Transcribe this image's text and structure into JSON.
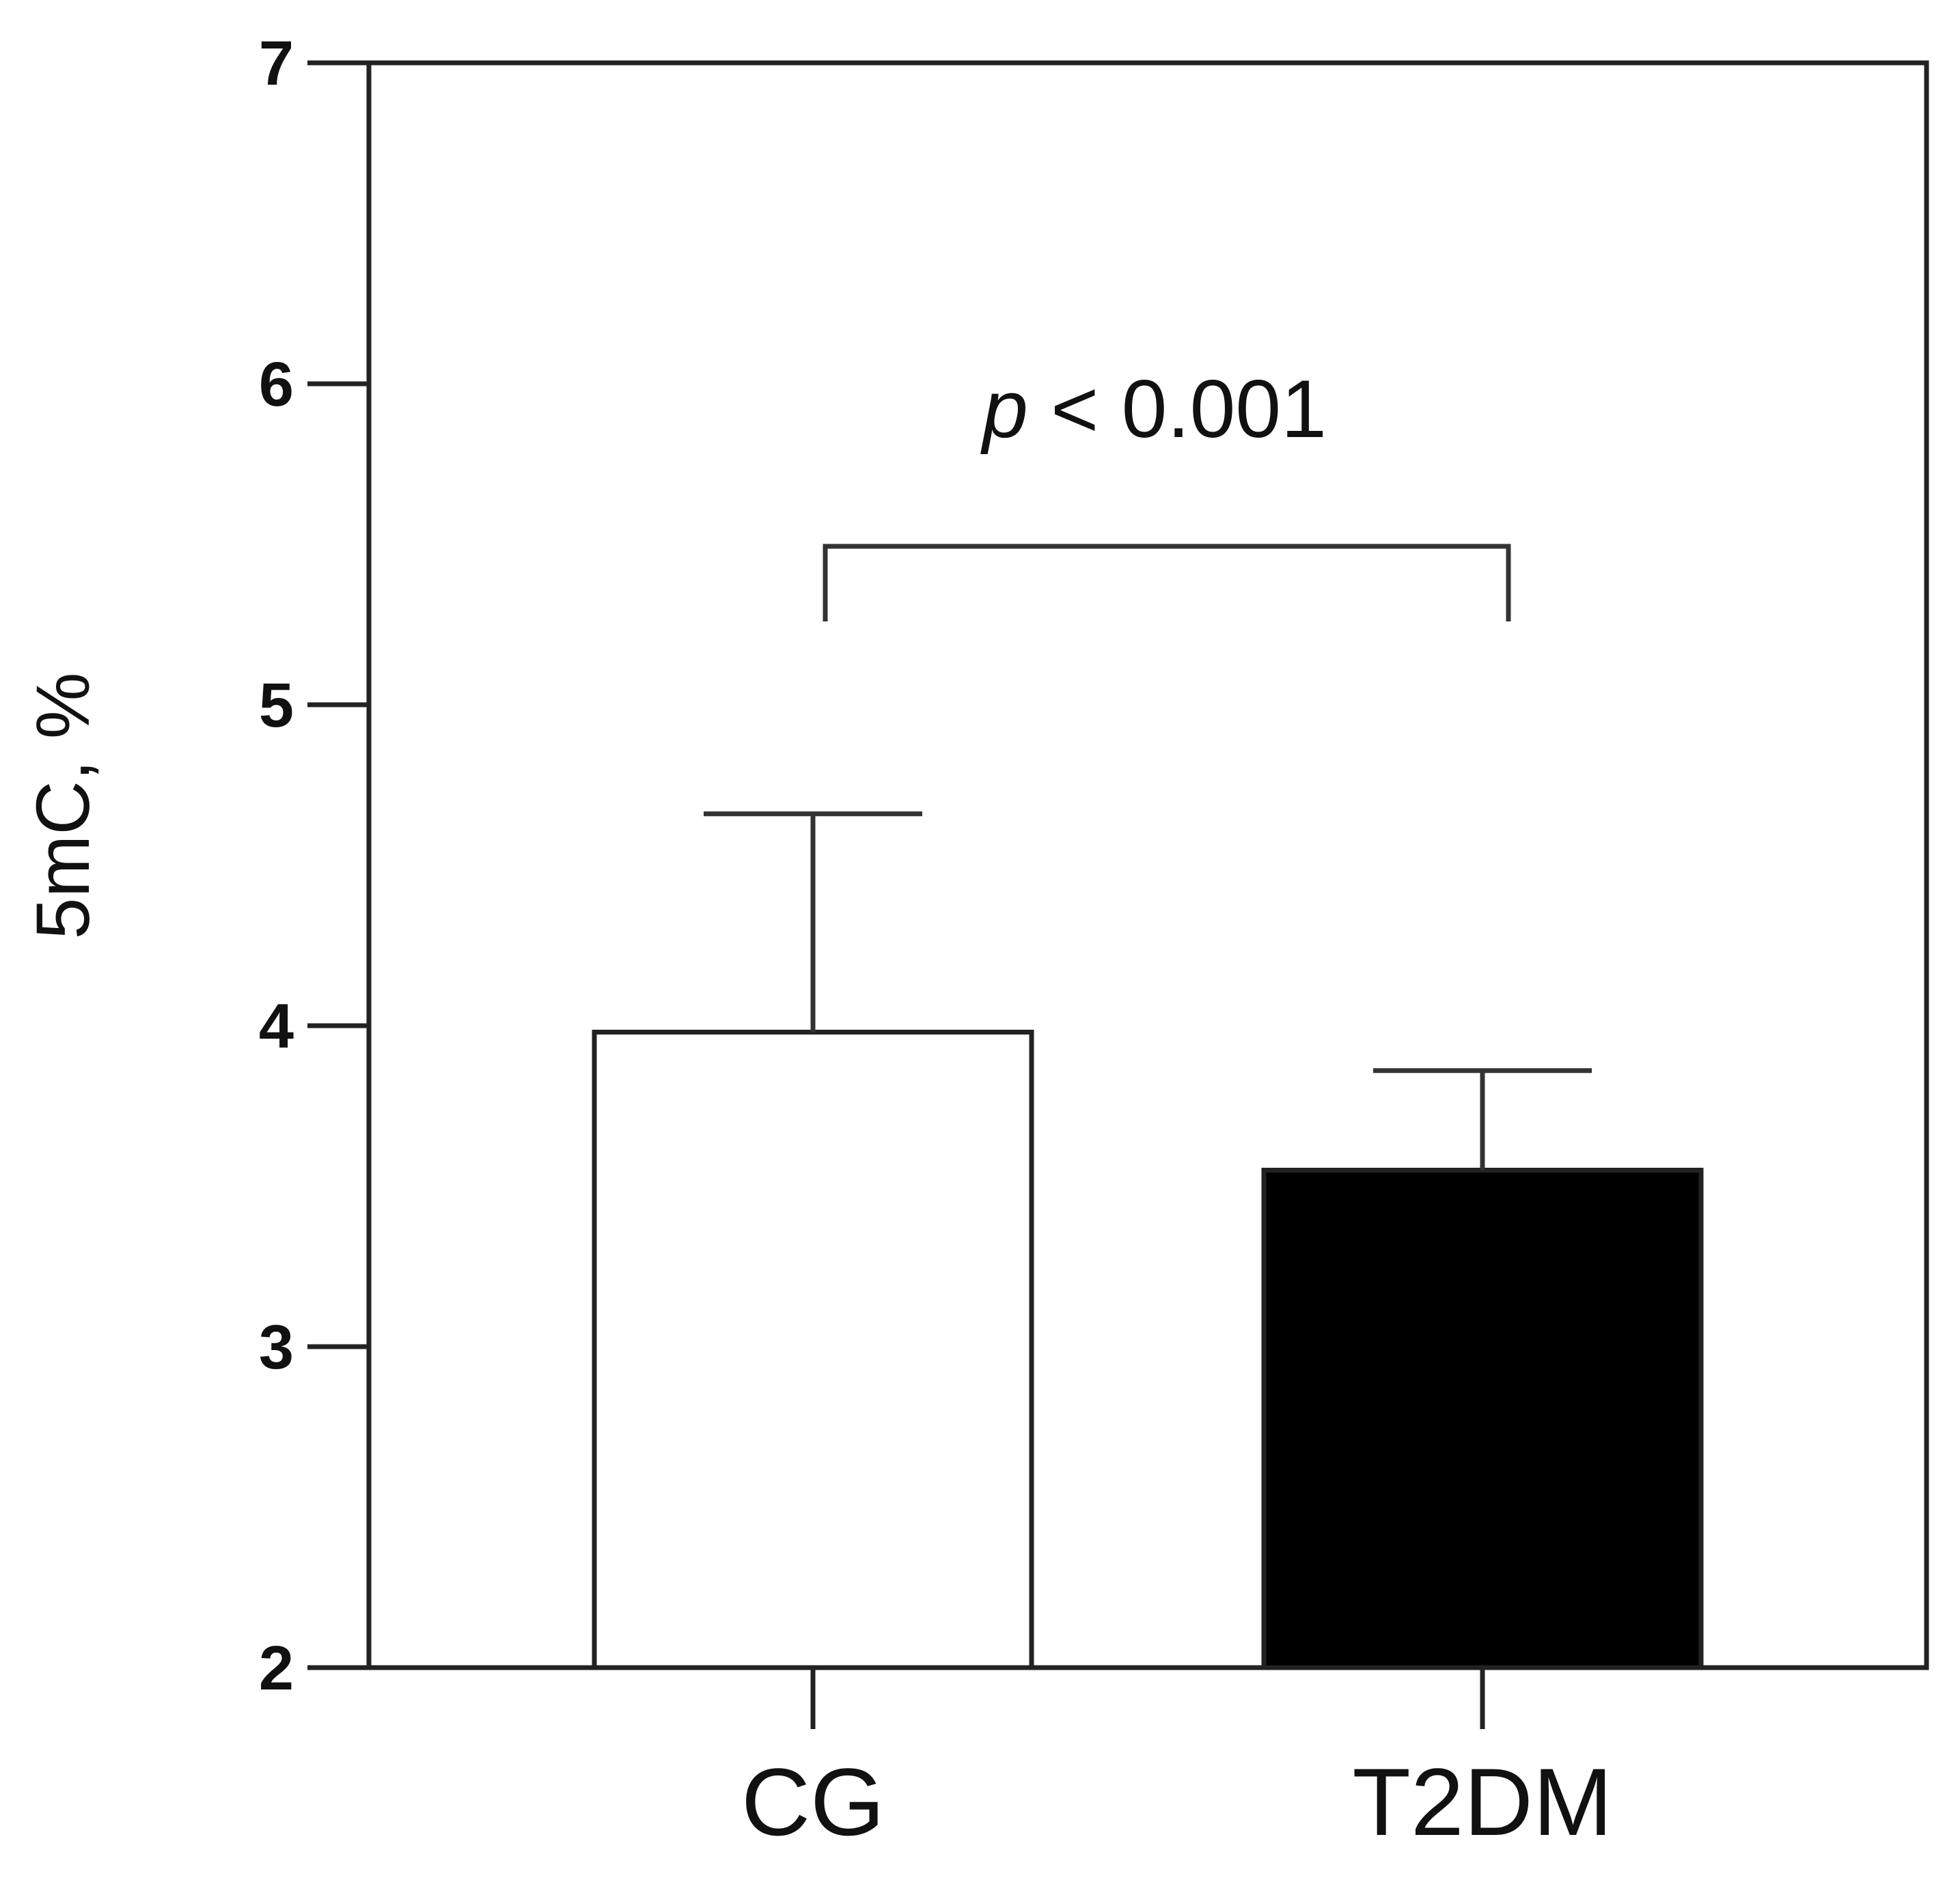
{
  "chart_data": {
    "type": "bar",
    "categories": [
      "CG",
      "T2DM"
    ],
    "values": [
      3.98,
      3.55
    ],
    "errors": [
      0.68,
      0.31
    ],
    "bar_colors": [
      "#ffffff",
      "#000000"
    ],
    "ylabel": "5mC, %",
    "xlabel": "",
    "ylim": [
      2,
      7
    ],
    "yticks": [
      "2",
      "3",
      "4",
      "5",
      "6",
      "7"
    ],
    "grid": false,
    "legend": "none",
    "annotation": {
      "p_symbol": "p",
      "text": " < 0.001",
      "bracket_between": [
        "CG",
        "T2DM"
      ]
    }
  }
}
